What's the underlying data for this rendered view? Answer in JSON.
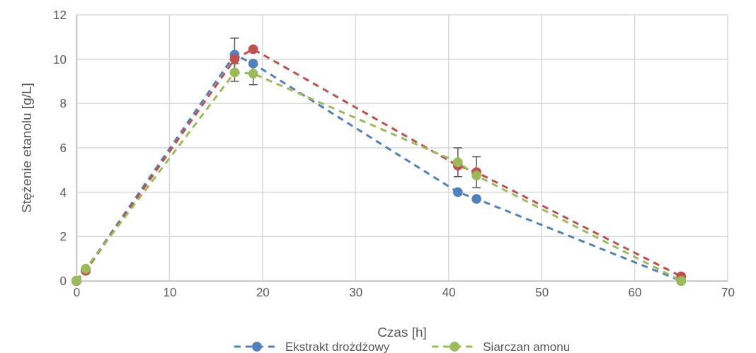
{
  "chart_data": {
    "type": "line",
    "xlabel": "Czas [h]",
    "ylabel": "Stężenie etanolu [g/L]",
    "xlim": [
      0,
      70
    ],
    "xticks": [
      0,
      10,
      20,
      30,
      40,
      50,
      60,
      70
    ],
    "ylim": [
      0,
      12
    ],
    "yticks": [
      0,
      2,
      4,
      6,
      8,
      10,
      12
    ],
    "grid": true,
    "legend": "bottom",
    "marker": "circle",
    "line_style": "dashed",
    "series": [
      {
        "name": "Ekstrakt drożdżowy",
        "color": "#4f81bd",
        "x": [
          0,
          1,
          17,
          19,
          41,
          43,
          65
        ],
        "values": [
          0,
          0.5,
          10.2,
          9.8,
          4.0,
          3.7,
          0
        ],
        "errors": [
          null,
          null,
          0.75,
          null,
          null,
          null,
          null
        ]
      },
      {
        "color": "#c0504d",
        "x": [
          0,
          1,
          17,
          19,
          41,
          43,
          65
        ],
        "values": [
          0,
          0.45,
          10.0,
          10.45,
          5.2,
          4.9,
          0.2
        ],
        "errors": [
          null,
          null,
          null,
          null,
          null,
          0.7,
          null
        ]
      },
      {
        "name": "Siarczan amonu",
        "color": "#9bbb59",
        "x": [
          0,
          1,
          17,
          19,
          41,
          43,
          65
        ],
        "values": [
          0,
          0.55,
          9.4,
          9.35,
          5.35,
          4.75,
          0
        ],
        "errors": [
          null,
          null,
          0.4,
          0.5,
          0.65,
          null,
          null
        ]
      }
    ]
  }
}
